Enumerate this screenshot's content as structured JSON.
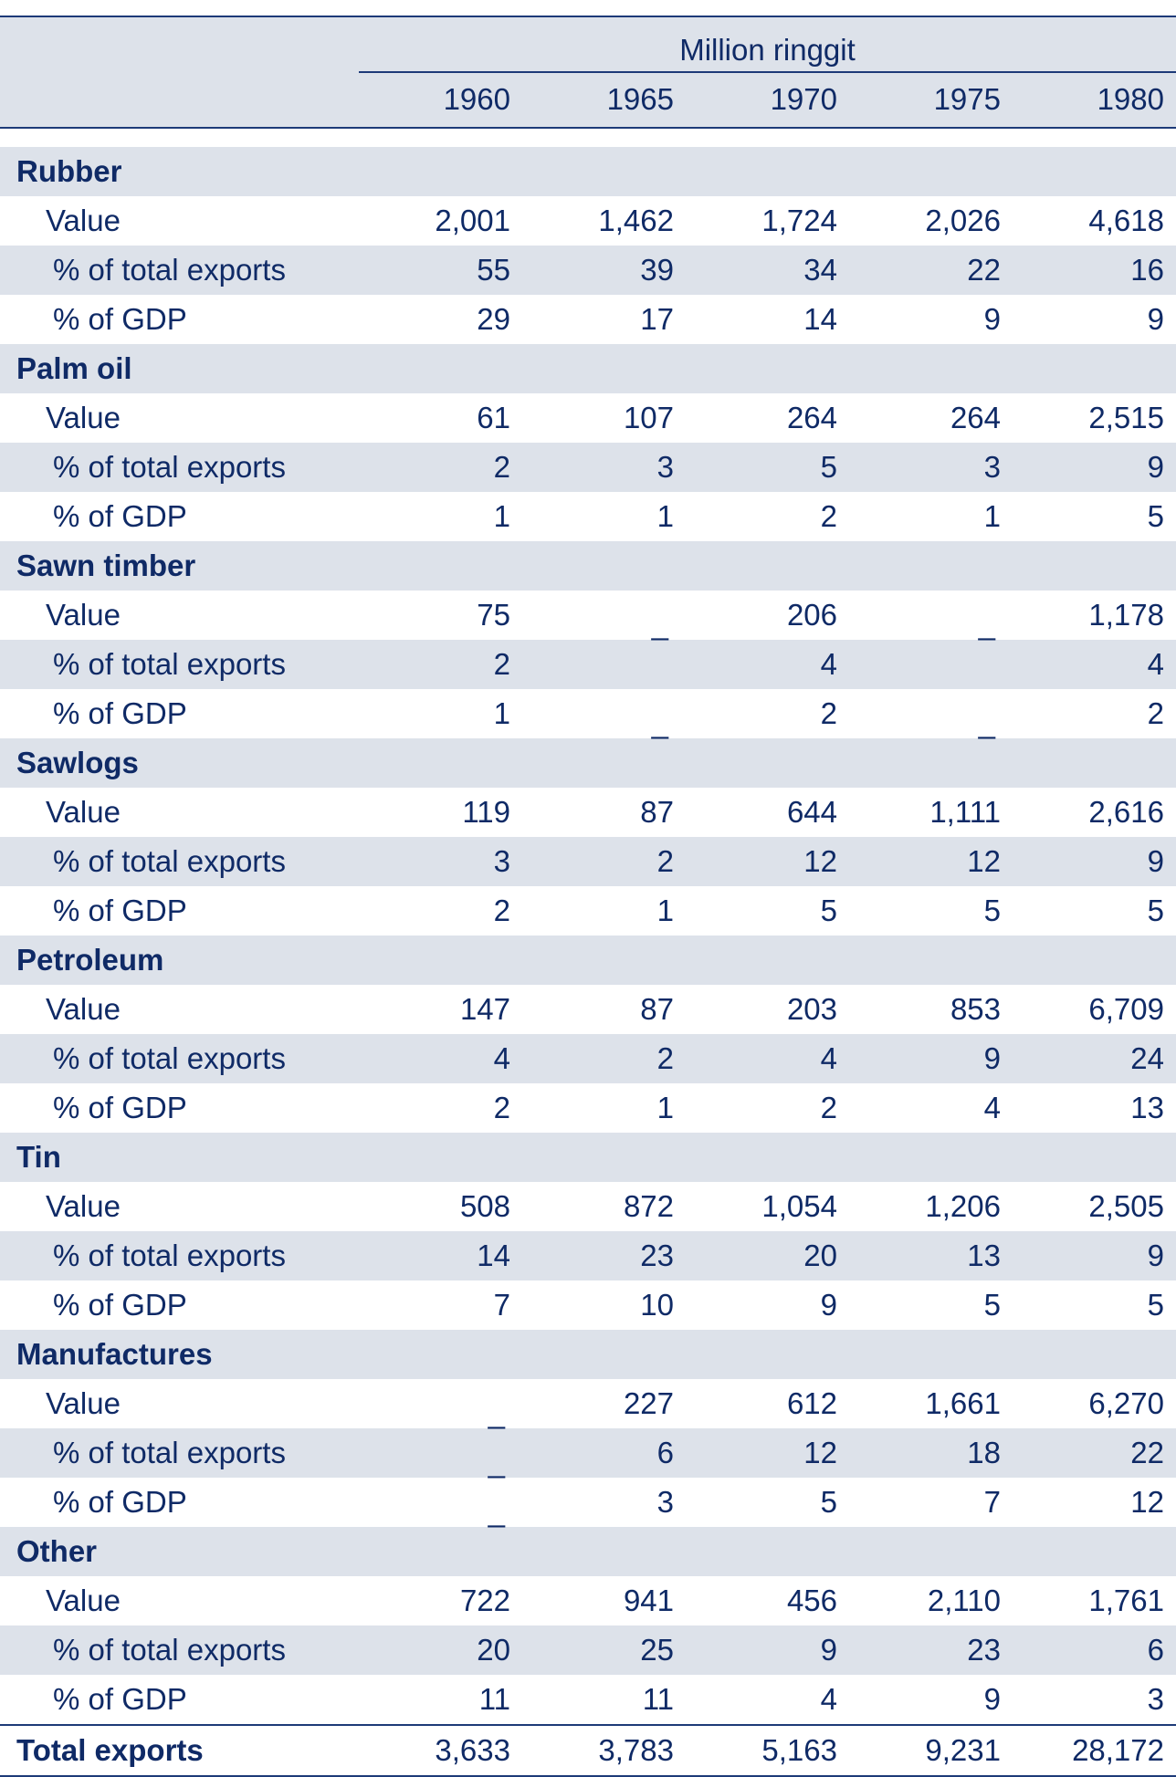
{
  "header": {
    "unit": "Million ringgit",
    "years": [
      "1960",
      "1965",
      "1970",
      "1975",
      "1980"
    ]
  },
  "rows": [
    {
      "type": "cat",
      "label": "Rubber"
    },
    {
      "type": "sub",
      "label": "Value",
      "values": [
        "2,001",
        "1,462",
        "1,724",
        "2,026",
        "4,618"
      ]
    },
    {
      "type": "sub",
      "label": "% of total exports",
      "values": [
        "55",
        "39",
        "34",
        "22",
        "16"
      ]
    },
    {
      "type": "sub",
      "label": "% of GDP",
      "values": [
        "29",
        "17",
        "14",
        "9",
        "9"
      ]
    },
    {
      "type": "cat",
      "label": "Palm oil"
    },
    {
      "type": "sub",
      "label": "Value",
      "values": [
        "61",
        "107",
        "264",
        "264",
        "2,515"
      ]
    },
    {
      "type": "sub",
      "label": "% of total exports",
      "values": [
        "2",
        "3",
        "5",
        "3",
        "9"
      ]
    },
    {
      "type": "sub",
      "label": "% of GDP",
      "values": [
        "1",
        "1",
        "2",
        "1",
        "5"
      ]
    },
    {
      "type": "cat",
      "label": "Sawn timber"
    },
    {
      "type": "sub",
      "label": "Value",
      "values": [
        "75",
        "_",
        "206",
        "_",
        "1,178"
      ]
    },
    {
      "type": "sub",
      "label": "% of total exports",
      "values": [
        "2",
        "",
        "4",
        "",
        "4"
      ]
    },
    {
      "type": "sub",
      "label": "% of GDP",
      "values": [
        "1",
        "_",
        "2",
        "_",
        "2"
      ]
    },
    {
      "type": "cat",
      "label": "Sawlogs"
    },
    {
      "type": "sub",
      "label": "Value",
      "values": [
        "119",
        "87",
        "644",
        "1,111",
        "2,616"
      ]
    },
    {
      "type": "sub",
      "label": "% of total exports",
      "values": [
        "3",
        "2",
        "12",
        "12",
        "9"
      ]
    },
    {
      "type": "sub",
      "label": "% of GDP",
      "values": [
        "2",
        "1",
        "5",
        "5",
        "5"
      ]
    },
    {
      "type": "cat",
      "label": "Petroleum"
    },
    {
      "type": "sub",
      "label": "Value",
      "values": [
        "147",
        "87",
        "203",
        "853",
        "6,709"
      ]
    },
    {
      "type": "sub",
      "label": "% of total exports",
      "values": [
        "4",
        "2",
        "4",
        "9",
        "24"
      ]
    },
    {
      "type": "sub",
      "label": "% of GDP",
      "values": [
        "2",
        "1",
        "2",
        "4",
        "13"
      ]
    },
    {
      "type": "cat",
      "label": "Tin"
    },
    {
      "type": "sub",
      "label": "Value",
      "values": [
        "508",
        "872",
        "1,054",
        "1,206",
        "2,505"
      ]
    },
    {
      "type": "sub",
      "label": "% of total exports",
      "values": [
        "14",
        "23",
        "20",
        "13",
        "9"
      ]
    },
    {
      "type": "sub",
      "label": "% of GDP",
      "values": [
        "7",
        "10",
        "9",
        "5",
        "5"
      ]
    },
    {
      "type": "cat",
      "label": "Manufactures"
    },
    {
      "type": "sub",
      "label": "Value",
      "values": [
        "_",
        "227",
        "612",
        "1,661",
        "6,270"
      ]
    },
    {
      "type": "sub",
      "label": "% of total exports",
      "values": [
        "_",
        "6",
        "12",
        "18",
        "22"
      ]
    },
    {
      "type": "sub",
      "label": "% of GDP",
      "values": [
        "_",
        "3",
        "5",
        "7",
        "12"
      ]
    },
    {
      "type": "cat",
      "label": "Other"
    },
    {
      "type": "sub",
      "label": "Value",
      "values": [
        "722",
        "941",
        "456",
        "2,110",
        "1,761"
      ]
    },
    {
      "type": "sub",
      "label": "% of total exports",
      "values": [
        "20",
        "25",
        "9",
        "23",
        "6"
      ]
    },
    {
      "type": "sub",
      "label": "% of GDP",
      "values": [
        "11",
        "11",
        "4",
        "9",
        "3"
      ]
    }
  ],
  "total": {
    "label": "Total exports",
    "values": [
      "3,633",
      "3,783",
      "5,163",
      "9,231",
      "28,172"
    ]
  }
}
